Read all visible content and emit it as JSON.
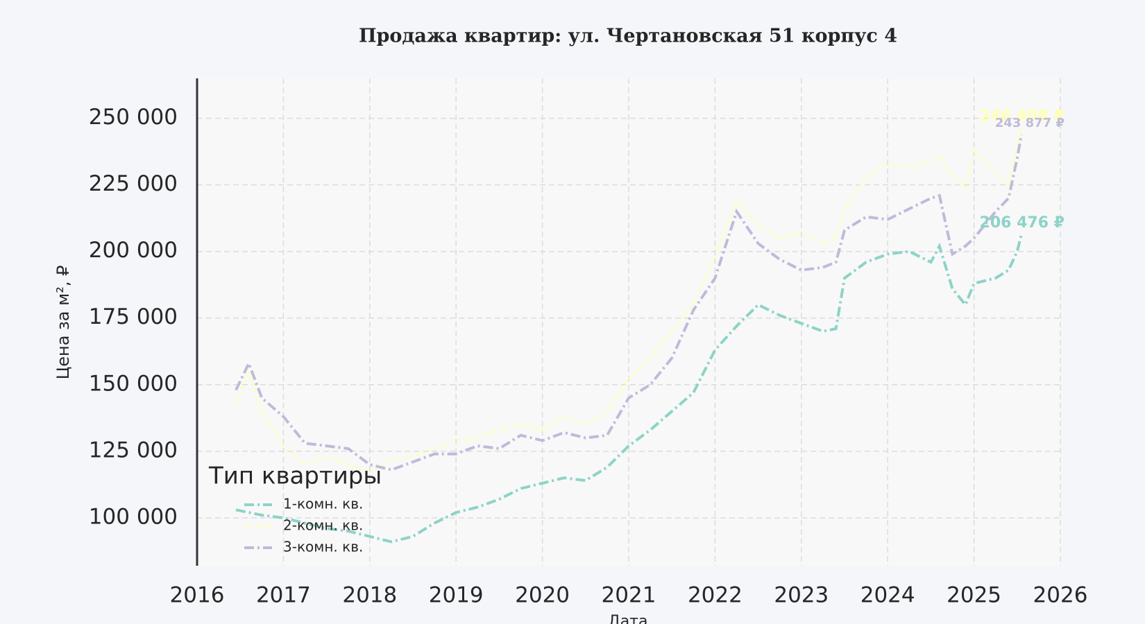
{
  "chart_data": {
    "type": "line",
    "title": "Продажа квартир: ул. Чертановская 51 корпус 4",
    "x_label": "Дата",
    "y_label": "Цена за м², ₽",
    "legend_title": "Тип квартиры",
    "legend": "lower left",
    "grid": true,
    "xlim": [
      2016,
      2026
    ],
    "xticks": [
      2016,
      2017,
      2018,
      2019,
      2020,
      2021,
      2022,
      2023,
      2024,
      2025,
      2026
    ],
    "ylim": [
      82000,
      265000
    ],
    "yticks": [
      {
        "value": 100000,
        "label": "100 000"
      },
      {
        "value": 125000,
        "label": "125 000"
      },
      {
        "value": 150000,
        "label": "150 000"
      },
      {
        "value": 175000,
        "label": "175 000"
      },
      {
        "value": 200000,
        "label": "200 000"
      },
      {
        "value": 225000,
        "label": "225 000"
      },
      {
        "value": 250000,
        "label": "250 000"
      }
    ],
    "x": [
      2016.45,
      2016.6,
      2016.75,
      2017,
      2017.25,
      2017.5,
      2017.75,
      2018,
      2018.25,
      2018.5,
      2018.75,
      2019,
      2019.25,
      2019.5,
      2019.75,
      2020,
      2020.25,
      2020.5,
      2020.75,
      2021,
      2021.25,
      2021.5,
      2021.75,
      2022,
      2022.25,
      2022.5,
      2022.75,
      2023,
      2023.25,
      2023.4,
      2023.5,
      2023.75,
      2024,
      2024.25,
      2024.5,
      2024.6,
      2024.75,
      2024.9,
      2025,
      2025.25,
      2025.4,
      2025.5,
      2025.55
    ],
    "series": [
      {
        "name": "1-комн. кв.",
        "color": "#8dd3c7",
        "end_label": "206 476 ₽",
        "values": [
          103000,
          102000,
          101000,
          100000,
          98000,
          96000,
          95000,
          93000,
          91000,
          93000,
          98000,
          102000,
          104000,
          107000,
          111000,
          113000,
          115000,
          114000,
          119000,
          127000,
          133000,
          140000,
          147000,
          163000,
          172000,
          180000,
          176000,
          173000,
          170000,
          171000,
          190000,
          196000,
          199000,
          200000,
          196000,
          202000,
          186000,
          180000,
          188000,
          190000,
          193000,
          200000,
          206476
        ]
      },
      {
        "name": "2-комн. кв.",
        "color": "#ffffb3",
        "end_label": "246 408 ₽",
        "values": [
          142000,
          155000,
          140000,
          127000,
          120000,
          123000,
          120000,
          117000,
          122000,
          123000,
          126000,
          129000,
          130000,
          133000,
          135000,
          133000,
          138000,
          135000,
          140000,
          152000,
          160000,
          170000,
          180000,
          198000,
          219000,
          210000,
          205000,
          207000,
          203000,
          205000,
          215000,
          228000,
          233000,
          232000,
          234000,
          236000,
          228000,
          224000,
          238000,
          230000,
          225000,
          240000,
          246408
        ]
      },
      {
        "name": "3-комн. кв.",
        "color": "#bebada",
        "end_label": "243 877 ₽",
        "values": [
          148000,
          158000,
          145000,
          138000,
          128000,
          127000,
          126000,
          120000,
          118000,
          121000,
          124000,
          124000,
          127000,
          126000,
          131000,
          129000,
          132000,
          130000,
          131000,
          145000,
          150000,
          160000,
          178000,
          190000,
          215000,
          203000,
          197000,
          193000,
          194000,
          196000,
          208000,
          213000,
          212000,
          216000,
          220000,
          221000,
          199000,
          202000,
          205000,
          215000,
          220000,
          235000,
          243877
        ]
      }
    ]
  }
}
